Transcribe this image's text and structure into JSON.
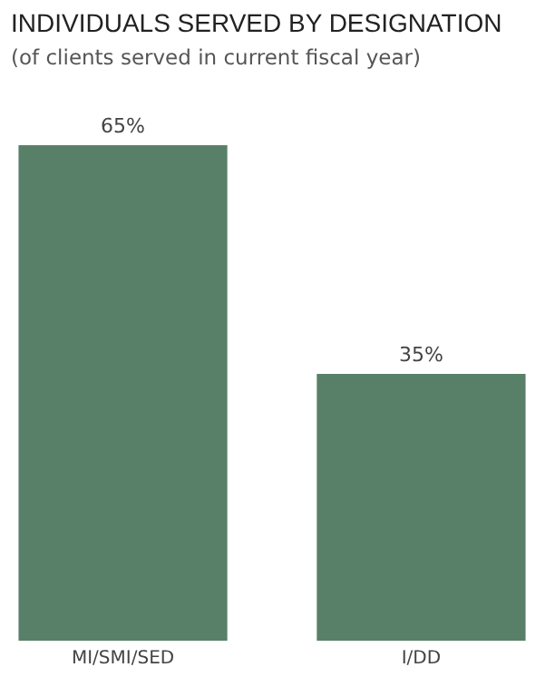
{
  "chart_data": {
    "type": "bar",
    "title": "INDIVIDUALS SERVED BY DESIGNATION",
    "subtitle": "(of clients served in current  fiscal year)",
    "categories": [
      "MI/SMI/SED",
      "I/DD"
    ],
    "values": [
      65,
      35
    ],
    "value_labels": [
      "65%",
      "35%"
    ],
    "color": "#588068"
  }
}
